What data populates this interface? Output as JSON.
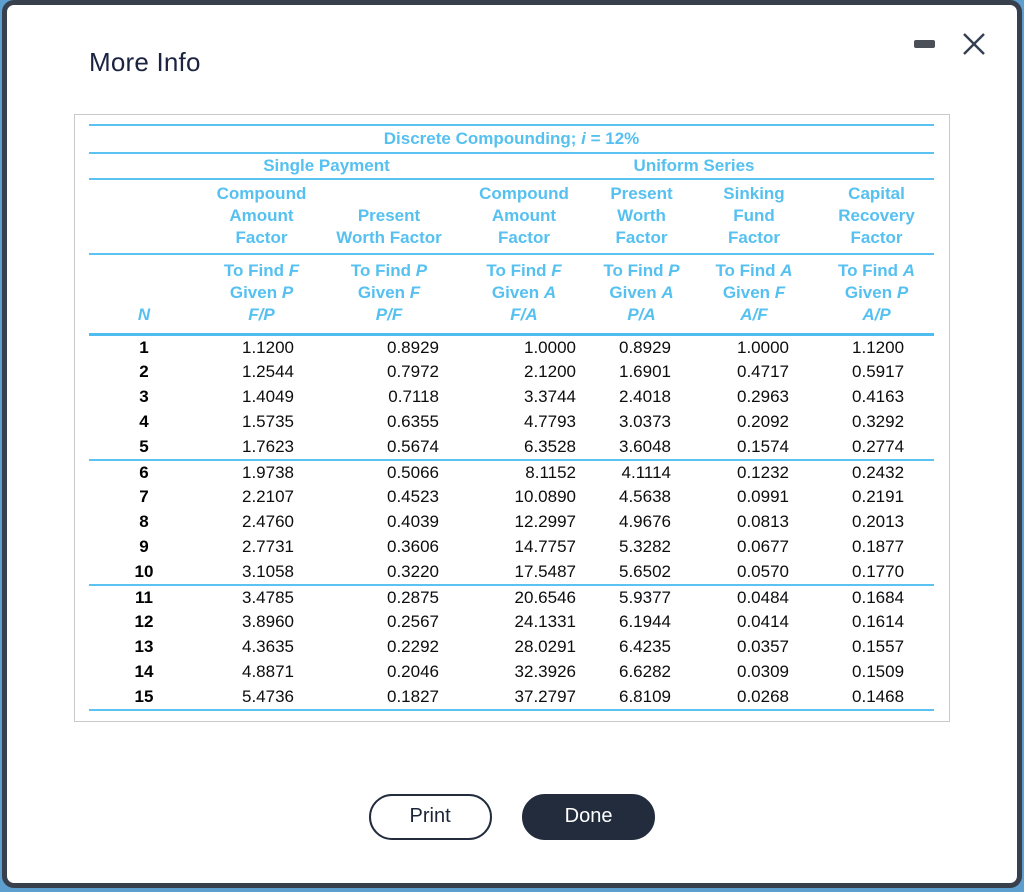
{
  "window": {
    "title": "More Info",
    "controls": {
      "minimize_icon": "minimize-dash",
      "close_icon": "close-x"
    }
  },
  "table": {
    "title_prefix": "Discrete Compounding; ",
    "title_var": "i",
    "title_suffix": " = 12%",
    "groups": [
      {
        "label": "Single Payment"
      },
      {
        "label": "Uniform Series"
      }
    ],
    "n_label": "N",
    "columns": [
      {
        "factor": "Compound\nAmount\nFactor",
        "find": "To Find ",
        "find_var": "F",
        "given": "Given ",
        "given_var": "P",
        "ratio": "F/P"
      },
      {
        "factor": "Present\nWorth Factor",
        "find": "To Find ",
        "find_var": "P",
        "given": "Given ",
        "given_var": "F",
        "ratio": "P/F"
      },
      {
        "factor": "Compound\nAmount\nFactor",
        "find": "To Find ",
        "find_var": "F",
        "given": "Given ",
        "given_var": "A",
        "ratio": "F/A"
      },
      {
        "factor": "Present\nWorth Factor",
        "find": "To Find ",
        "find_var": "P",
        "given": "Given ",
        "given_var": "A",
        "ratio": "P/A"
      },
      {
        "factor": "Sinking\nFund\nFactor",
        "find": "To Find ",
        "find_var": "A",
        "given": "Given ",
        "given_var": "F",
        "ratio": "A/F"
      },
      {
        "factor": "Capital\nRecovery\nFactor",
        "find": "To Find ",
        "find_var": "A",
        "given": "Given ",
        "given_var": "P",
        "ratio": "A/P"
      }
    ],
    "rows": [
      [
        "1",
        "1.1200",
        "0.8929",
        "1.0000",
        "0.8929",
        "1.0000",
        "1.1200"
      ],
      [
        "2",
        "1.2544",
        "0.7972",
        "2.1200",
        "1.6901",
        "0.4717",
        "0.5917"
      ],
      [
        "3",
        "1.4049",
        "0.7118",
        "3.3744",
        "2.4018",
        "0.2963",
        "0.4163"
      ],
      [
        "4",
        "1.5735",
        "0.6355",
        "4.7793",
        "3.0373",
        "0.2092",
        "0.3292"
      ],
      [
        "5",
        "1.7623",
        "0.5674",
        "6.3528",
        "3.6048",
        "0.1574",
        "0.2774"
      ],
      [
        "6",
        "1.9738",
        "0.5066",
        "8.1152",
        "4.1114",
        "0.1232",
        "0.2432"
      ],
      [
        "7",
        "2.2107",
        "0.4523",
        "10.0890",
        "4.5638",
        "0.0991",
        "0.2191"
      ],
      [
        "8",
        "2.4760",
        "0.4039",
        "12.2997",
        "4.9676",
        "0.0813",
        "0.2013"
      ],
      [
        "9",
        "2.7731",
        "0.3606",
        "14.7757",
        "5.3282",
        "0.0677",
        "0.1877"
      ],
      [
        "10",
        "3.1058",
        "0.3220",
        "17.5487",
        "5.6502",
        "0.0570",
        "0.1770"
      ],
      [
        "11",
        "3.4785",
        "0.2875",
        "20.6546",
        "5.9377",
        "0.0484",
        "0.1684"
      ],
      [
        "12",
        "3.8960",
        "0.2567",
        "24.1331",
        "6.1944",
        "0.0414",
        "0.1614"
      ],
      [
        "13",
        "4.3635",
        "0.2292",
        "28.0291",
        "6.4235",
        "0.0357",
        "0.1557"
      ],
      [
        "14",
        "4.8871",
        "0.2046",
        "32.3926",
        "6.6282",
        "0.0309",
        "0.1509"
      ],
      [
        "15",
        "5.4736",
        "0.1827",
        "37.2797",
        "6.8109",
        "0.0268",
        "0.1468"
      ]
    ]
  },
  "buttons": {
    "print": "Print",
    "done": "Done"
  },
  "colors": {
    "accent_blue": "#56c1f0",
    "dark_navy": "#232c3d",
    "dialog_border": "#39404d",
    "panel_border": "#c9c9c9"
  }
}
